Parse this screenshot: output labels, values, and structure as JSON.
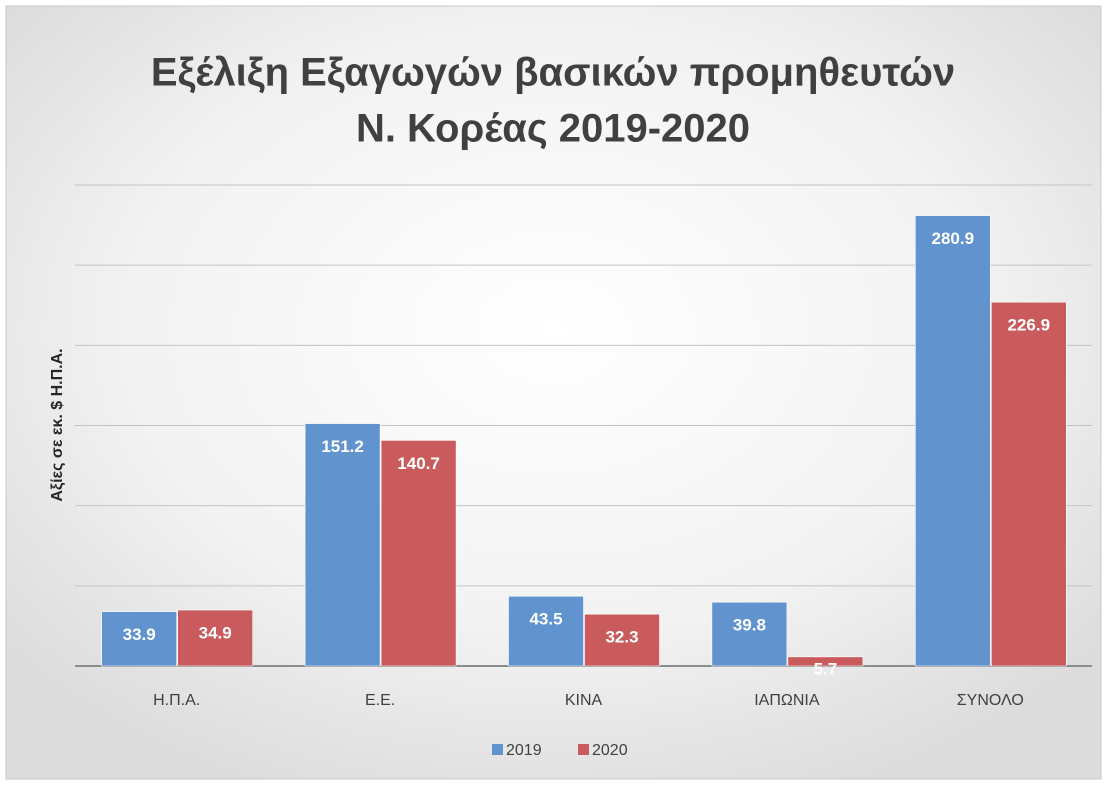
{
  "chart_data": {
    "type": "bar",
    "title": [
      "Εξέλιξη Εξαγωγών βασικών προμηθευτών",
      "Ν. Κορέας 2019-2020"
    ],
    "y_label": "Αξίες σε εκ. $ Η.Π.Α.",
    "categories": [
      "Η.Π.Α.",
      "Ε.Ε.",
      "ΚΙΝΑ",
      "ΙΑΠΩΝΙΑ",
      "ΣΥΝΟΛΟ"
    ],
    "series": [
      {
        "name": "2019",
        "color": "#6194cf",
        "values": [
          33.9,
          151.2,
          43.5,
          39.8,
          280.9
        ]
      },
      {
        "name": "2020",
        "color": "#c95b5c",
        "values": [
          34.9,
          140.7,
          32.3,
          5.7,
          226.9
        ]
      }
    ],
    "ylim": [
      0,
      300
    ],
    "yticks": [
      0,
      50,
      100,
      150,
      200,
      250,
      300
    ],
    "grid": true,
    "legend": "bottom"
  }
}
